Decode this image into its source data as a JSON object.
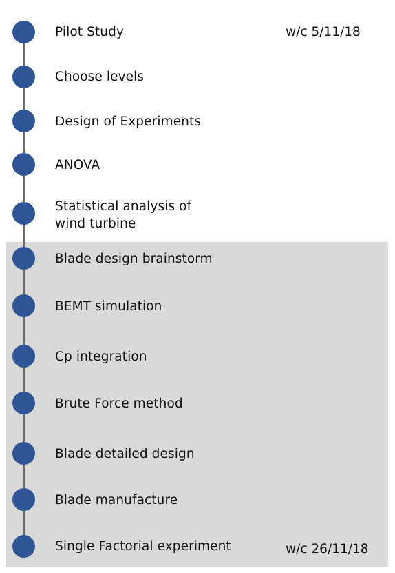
{
  "timeline": {
    "steps": [
      {
        "label": "Pilot Study",
        "date": "w/c 5/11/18"
      },
      {
        "label": "Choose levels"
      },
      {
        "label": "Design of Experiments"
      },
      {
        "label": "ANOVA"
      },
      {
        "label": "Statistical analysis of wind turbine"
      },
      {
        "label": "Blade design brainstorm"
      },
      {
        "label": "BEMT simulation"
      },
      {
        "label": "Cp integration"
      },
      {
        "label": "Brute Force method"
      },
      {
        "label": "Blade detailed design"
      },
      {
        "label": "Blade manufacture"
      },
      {
        "label": "Single Factorial experiment",
        "date": "w/c 26/11/18"
      }
    ]
  },
  "colors": {
    "dot": "#2f5597",
    "spine": "#6b6b6b",
    "highlight_band": "#d9d9d9"
  }
}
